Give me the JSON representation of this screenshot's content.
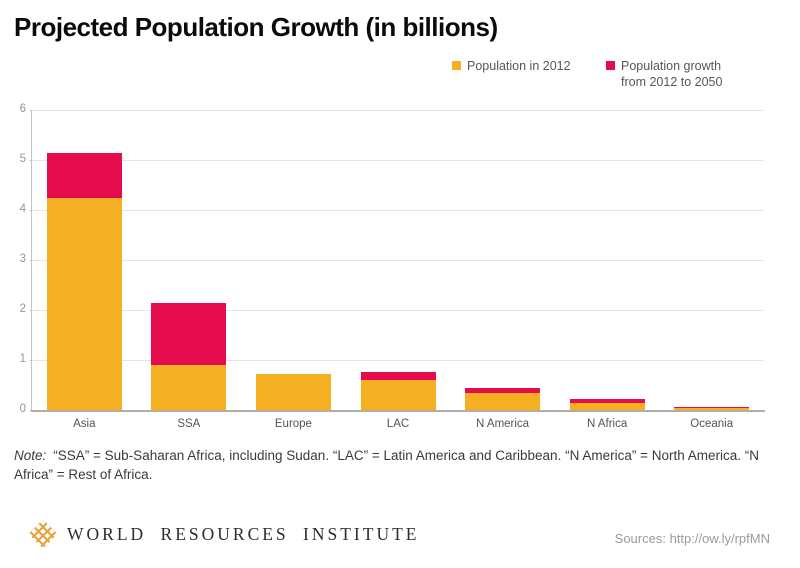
{
  "title": "Projected Population Growth (in billions)",
  "legend": [
    {
      "label": "Population in 2012",
      "color": "#F4AF23"
    },
    {
      "label": "Population growth from 2012 to 2050",
      "color": "#E50C4E"
    }
  ],
  "chart_data": {
    "type": "bar",
    "stacked": true,
    "title": "Projected Population Growth (in billions)",
    "categories": [
      "Asia",
      "SSA",
      "Europe",
      "LAC",
      "N America",
      "N Africa",
      "Oceania"
    ],
    "series": [
      {
        "name": "Population in 2012",
        "color": "#F4AF23",
        "values": [
          4.25,
          0.9,
          0.72,
          0.6,
          0.35,
          0.15,
          0.04
        ]
      },
      {
        "name": "Population growth from 2012 to 2050",
        "color": "#E50C4E",
        "values": [
          0.9,
          1.25,
          0,
          0.17,
          0.09,
          0.08,
          0.03
        ]
      }
    ],
    "xlabel": "",
    "ylabel": "",
    "ylim": [
      0,
      6
    ],
    "yticks": [
      0,
      1,
      2,
      3,
      4,
      5,
      6
    ],
    "grid": "horizontal",
    "legend_position": "top-right"
  },
  "note": {
    "prefix": "Note:",
    "text": "“SSA” = Sub-Saharan Africa, including Sudan. “LAC” = Latin America and Caribbean. “N America” = North America. “N Africa” = Rest of Africa."
  },
  "footer": {
    "org": "WORLD RESOURCES INSTITUTE",
    "logo": "wri-woven-diamond-logo",
    "logo_color": "#E5A33C",
    "sources": "Sources: http://ow.ly/rpfMN"
  }
}
